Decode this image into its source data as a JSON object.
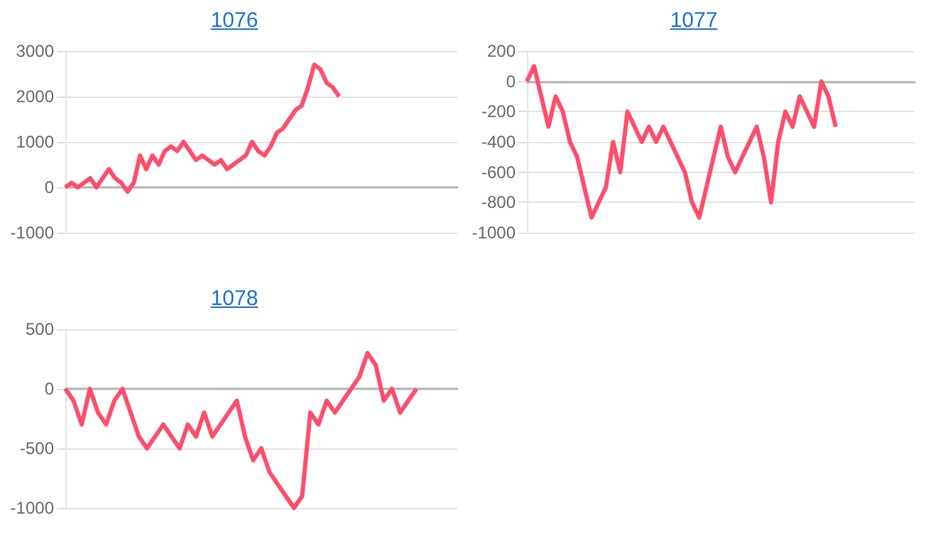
{
  "chart_data": [
    {
      "type": "line",
      "title": "1076",
      "color": "#ff4d6a",
      "grid": "y",
      "tick_labels": "y",
      "ylim": [
        -1000,
        3000
      ],
      "yticks": [
        -1000,
        0,
        1000,
        2000,
        3000
      ],
      "categories": [
        null,
        null,
        null,
        null,
        null,
        null,
        null,
        null,
        null,
        null,
        null,
        null,
        null,
        null,
        null,
        null,
        null,
        null,
        null,
        null,
        null,
        null,
        null,
        null,
        null,
        null,
        null,
        null,
        null,
        null,
        null,
        null,
        null,
        null,
        null,
        null,
        null,
        null,
        null,
        null,
        null,
        null,
        null,
        null,
        null,
        null,
        null,
        null,
        null,
        null,
        null,
        null,
        null,
        null,
        null,
        null,
        null,
        null,
        null,
        null,
        null,
        null,
        null,
        null
      ],
      "values": [
        0,
        100,
        0,
        100,
        200,
        0,
        200,
        400,
        200,
        100,
        -100,
        100,
        700,
        400,
        700,
        500,
        800,
        900,
        800,
        1000,
        800,
        600,
        700,
        600,
        500,
        600,
        400,
        500,
        600,
        700,
        1000,
        800,
        700,
        900,
        1200,
        1300,
        1500,
        1700,
        1800,
        2200,
        2700,
        2600,
        2300,
        2200,
        2000,
        null,
        null,
        null,
        null,
        null,
        null,
        null,
        null,
        null,
        null,
        null,
        null,
        null,
        null,
        null,
        null,
        null,
        null,
        null
      ]
    },
    {
      "type": "line",
      "title": "1077",
      "color": "#ff4d6a",
      "grid": "y",
      "tick_labels": "y",
      "ylim": [
        -1000,
        200
      ],
      "yticks": [
        -1000,
        -800,
        -600,
        -400,
        -200,
        0,
        200
      ],
      "categories": [
        null,
        null,
        null,
        null,
        null,
        null,
        null,
        null,
        null,
        null,
        null,
        null,
        null,
        null,
        null,
        null,
        null,
        null,
        null,
        null,
        null,
        null,
        null,
        null,
        null,
        null,
        null,
        null,
        null,
        null,
        null,
        null,
        null,
        null,
        null,
        null,
        null,
        null,
        null,
        null,
        null,
        null,
        null,
        null,
        null,
        null,
        null,
        null,
        null,
        null,
        null,
        null,
        null,
        null,
        null
      ],
      "values": [
        0,
        100,
        -100,
        -300,
        -100,
        -200,
        -400,
        -500,
        -700,
        -900,
        -800,
        -700,
        -400,
        -600,
        -200,
        -300,
        -400,
        -300,
        -400,
        -300,
        -400,
        -500,
        -600,
        -800,
        -900,
        -700,
        -500,
        -300,
        -500,
        -600,
        -500,
        -400,
        -300,
        -500,
        -800,
        -400,
        -200,
        -300,
        -100,
        -200,
        -300,
        0,
        -100,
        -300,
        null,
        null,
        null,
        null,
        null,
        null,
        null,
        null,
        null,
        null,
        null
      ]
    },
    {
      "type": "line",
      "title": "1078",
      "color": "#ff4d6a",
      "grid": "y",
      "tick_labels": "y",
      "ylim": [
        -1000,
        500
      ],
      "yticks": [
        -1000,
        -500,
        0,
        500
      ],
      "categories": [
        null,
        null,
        null,
        null,
        null,
        null,
        null,
        null,
        null,
        null,
        null,
        null,
        null,
        null,
        null,
        null,
        null,
        null,
        null,
        null,
        null,
        null,
        null,
        null,
        null,
        null,
        null,
        null,
        null,
        null,
        null,
        null,
        null,
        null,
        null,
        null,
        null,
        null,
        null,
        null,
        null,
        null,
        null,
        null,
        null,
        null,
        null,
        null,
        null
      ],
      "values": [
        0,
        -100,
        -300,
        0,
        -200,
        -300,
        -100,
        0,
        -200,
        -400,
        -500,
        -400,
        -300,
        -400,
        -500,
        -300,
        -400,
        -200,
        -400,
        -300,
        -200,
        -100,
        -400,
        -600,
        -500,
        -700,
        -800,
        -900,
        -1000,
        -900,
        -200,
        -300,
        -100,
        -200,
        -100,
        0,
        100,
        300,
        200,
        -100,
        0,
        -200,
        -100,
        0,
        null,
        null,
        null,
        null,
        null
      ]
    }
  ]
}
